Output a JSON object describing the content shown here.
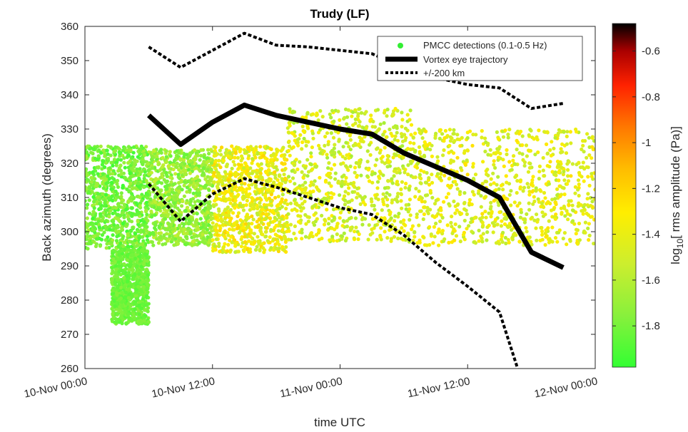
{
  "chart_data": {
    "type": "scatter",
    "title": "Trudy (LF)",
    "xlabel": "time UTC",
    "ylabel": "Back azimuth (degrees)",
    "xlim_hours": [
      0,
      48
    ],
    "ylim": [
      260,
      360
    ],
    "x_ticks": [
      {
        "hours": 0,
        "label": "10-Nov 00:00"
      },
      {
        "hours": 12,
        "label": "10-Nov 12:00"
      },
      {
        "hours": 24,
        "label": "11-Nov 00:00"
      },
      {
        "hours": 36,
        "label": "11-Nov 12:00"
      },
      {
        "hours": 48,
        "label": "12-Nov 00:00"
      }
    ],
    "y_ticks": [
      260,
      270,
      280,
      290,
      300,
      310,
      320,
      330,
      340,
      350,
      360
    ],
    "colorbar": {
      "label_prefix": "log",
      "label_subscript": "10",
      "label_suffix": "[ rms amplitude (Pa)]",
      "range": [
        -1.98,
        -0.48
      ],
      "ticks": [
        "-1.8",
        "-1.6",
        "-1.4",
        "-1.2",
        "-1",
        "-0.8",
        "-0.6"
      ],
      "tick_values": [
        -1.8,
        -1.6,
        -1.4,
        -1.2,
        -1.0,
        -0.8,
        -0.6
      ],
      "colormap": [
        "#33ff33",
        "#88f03c",
        "#ccee2e",
        "#ffee00",
        "#ffcc00",
        "#ff9900",
        "#ff5500",
        "#ff1100",
        "#aa0000",
        "#000000"
      ]
    },
    "legend": {
      "position": "top-right",
      "entries": [
        {
          "label": "PMCC detections (0.1-0.5 Hz)",
          "style": "dot",
          "color": "#33ee33"
        },
        {
          "label": "Vortex eye trajectory",
          "style": "thick-solid",
          "color": "#000000"
        },
        {
          "label": "+/-200 km",
          "style": "dotted",
          "color": "#000000"
        }
      ]
    },
    "series": [
      {
        "name": "Vortex eye trajectory",
        "x_hours": [
          6,
          9,
          12,
          15,
          18,
          21,
          24,
          27,
          30,
          33,
          36,
          39,
          42,
          45
        ],
        "y": [
          334,
          325.5,
          332,
          337,
          334,
          332,
          330,
          328.5,
          323,
          319,
          315,
          310,
          294,
          289.5
        ]
      },
      {
        "name": "+/-200 km upper",
        "x_hours": [
          6,
          9,
          12,
          15,
          18,
          21,
          24,
          27,
          30,
          33,
          36,
          39,
          42,
          45
        ],
        "y": [
          354,
          348,
          353,
          358,
          354.5,
          354,
          353,
          352,
          348,
          345,
          343,
          342,
          336,
          337.5
        ]
      },
      {
        "name": "+/-200 km lower",
        "x_hours": [
          6,
          9,
          12,
          15,
          18,
          21,
          24,
          27,
          30,
          33,
          36,
          39,
          40.7
        ],
        "y": [
          314,
          303,
          311,
          315.5,
          313,
          310,
          307,
          305,
          299,
          291,
          284,
          276.5,
          260
        ]
      }
    ],
    "detections": {
      "name": "PMCC detections (0.1-0.5 Hz)",
      "count_estimate": 5000,
      "description_segments": [
        {
          "x_hours": [
            0,
            6
          ],
          "y_band": [
            295,
            325
          ],
          "log_amp": [
            -1.95,
            -1.65
          ]
        },
        {
          "x_hours": [
            2.5,
            6
          ],
          "y_tail": [
            273,
            295
          ],
          "log_amp": [
            -1.9,
            -1.75
          ]
        },
        {
          "x_hours": [
            6,
            12
          ],
          "y_band": [
            296,
            324
          ],
          "log_amp": [
            -1.85,
            -1.55
          ]
        },
        {
          "x_hours": [
            12,
            19
          ],
          "y_band": [
            294,
            325
          ],
          "log_amp": [
            -1.6,
            -1.2
          ]
        },
        {
          "x_hours": [
            19,
            31
          ],
          "y_band": [
            297,
            336
          ],
          "log_amp": [
            -1.65,
            -1.3
          ]
        },
        {
          "x_hours": [
            31,
            48
          ],
          "y_band": [
            296,
            330
          ],
          "log_amp": [
            -1.6,
            -1.25
          ]
        }
      ]
    }
  }
}
